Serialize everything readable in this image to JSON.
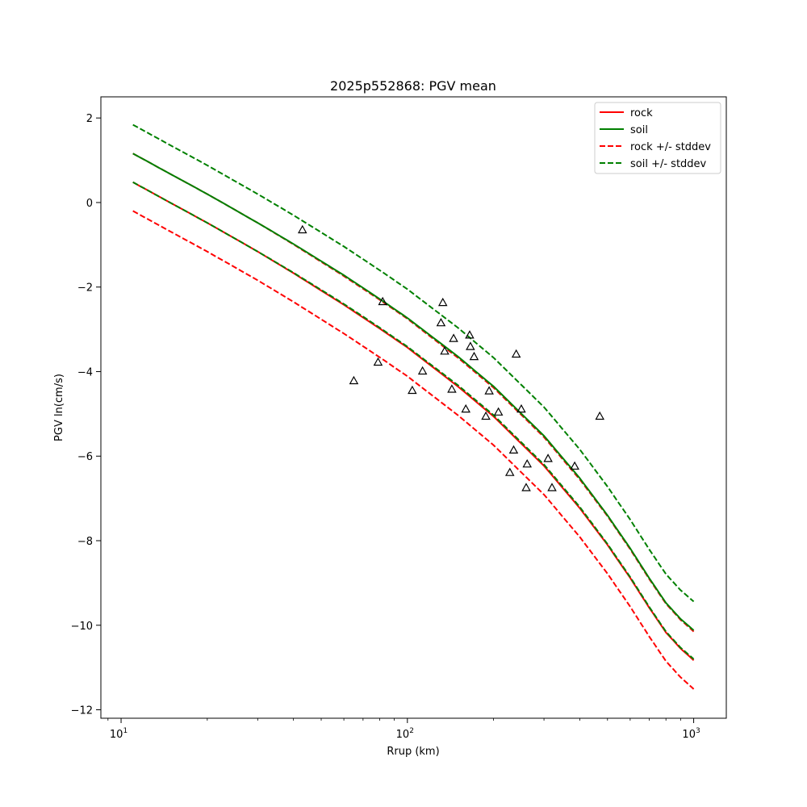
{
  "chart_data": {
    "type": "line",
    "title": "2025p552868: PGV mean",
    "xlabel": "Rrup (km)",
    "ylabel": "PGV ln(cm/s)",
    "x_scale": "log",
    "xlim": [
      8.5,
      1300
    ],
    "ylim": [
      -12.2,
      2.5
    ],
    "x_ticks": [
      {
        "value": 10,
        "base": "10",
        "exp": "1"
      },
      {
        "value": 100,
        "base": "10",
        "exp": "2"
      },
      {
        "value": 1000,
        "base": "10",
        "exp": "3"
      }
    ],
    "y_ticks": [
      {
        "value": 2,
        "label": "2"
      },
      {
        "value": 0,
        "label": "0"
      },
      {
        "value": -2,
        "label": "−2"
      },
      {
        "value": -4,
        "label": "−4"
      },
      {
        "value": -6,
        "label": "−6"
      },
      {
        "value": -8,
        "label": "−8"
      },
      {
        "value": -10,
        "label": "−10"
      },
      {
        "value": -12,
        "label": "−12"
      }
    ],
    "grid": false,
    "legend_position": "top-right",
    "legend": [
      {
        "label": "rock",
        "color": "#ff0000",
        "dash": "solid"
      },
      {
        "label": "soil",
        "color": "#008000",
        "dash": "solid"
      },
      {
        "label": "rock +/- stddev",
        "color": "#ff0000",
        "dash": "dashed"
      },
      {
        "label": "soil +/- stddev",
        "color": "#008000",
        "dash": "dashed"
      }
    ],
    "x": [
      11,
      15,
      20,
      30,
      40,
      60,
      80,
      100,
      150,
      200,
      300,
      400,
      500,
      600,
      700,
      800,
      900,
      1000
    ],
    "series": [
      {
        "key": "rock_mean",
        "color": "#ff0000",
        "dash": "solid",
        "values": [
          0.48,
          -0.02,
          -0.48,
          -1.16,
          -1.67,
          -2.42,
          -2.98,
          -3.43,
          -4.35,
          -5.06,
          -6.23,
          -7.23,
          -8.1,
          -8.88,
          -9.59,
          -10.17,
          -10.55,
          -10.83
        ]
      },
      {
        "key": "rock_plus_stddev",
        "color": "#ff0000",
        "dash": "dashed",
        "values": [
          1.16,
          0.66,
          0.2,
          -0.48,
          -0.99,
          -1.74,
          -2.3,
          -2.75,
          -3.67,
          -4.38,
          -5.55,
          -6.55,
          -7.42,
          -8.2,
          -8.91,
          -9.49,
          -9.87,
          -10.15
        ]
      },
      {
        "key": "rock_minus_stddev",
        "color": "#ff0000",
        "dash": "dashed",
        "values": [
          -0.2,
          -0.7,
          -1.16,
          -1.84,
          -2.35,
          -3.1,
          -3.66,
          -4.11,
          -5.03,
          -5.74,
          -6.91,
          -7.91,
          -8.78,
          -9.56,
          -10.27,
          -10.85,
          -11.23,
          -11.51
        ]
      },
      {
        "key": "soil_mean",
        "color": "#008000",
        "dash": "solid",
        "values": [
          1.16,
          0.66,
          0.2,
          -0.48,
          -0.98,
          -1.72,
          -2.28,
          -2.73,
          -3.64,
          -4.35,
          -5.52,
          -6.52,
          -7.4,
          -8.18,
          -8.89,
          -9.47,
          -9.85,
          -10.12
        ]
      },
      {
        "key": "soil_plus_stddev",
        "color": "#008000",
        "dash": "dashed",
        "values": [
          1.84,
          1.34,
          0.88,
          0.2,
          -0.3,
          -1.04,
          -1.6,
          -2.05,
          -2.96,
          -3.67,
          -4.84,
          -5.84,
          -6.72,
          -7.5,
          -8.21,
          -8.79,
          -9.17,
          -9.44
        ]
      },
      {
        "key": "soil_minus_stddev",
        "color": "#008000",
        "dash": "dashed",
        "values": [
          0.48,
          -0.02,
          -0.48,
          -1.16,
          -1.66,
          -2.4,
          -2.96,
          -3.41,
          -4.32,
          -5.03,
          -6.2,
          -7.2,
          -8.08,
          -8.86,
          -9.57,
          -10.15,
          -10.53,
          -10.8
        ]
      }
    ],
    "observations": {
      "marker": "triangle-open",
      "color": "#000000",
      "points": [
        [
          43,
          -0.65
        ],
        [
          65,
          -4.22
        ],
        [
          79,
          -3.78
        ],
        [
          82,
          -2.35
        ],
        [
          104,
          -4.45
        ],
        [
          113,
          -3.99
        ],
        [
          131,
          -2.85
        ],
        [
          133,
          -2.37
        ],
        [
          135,
          -3.52
        ],
        [
          143,
          -4.42
        ],
        [
          145,
          -3.22
        ],
        [
          160,
          -4.89
        ],
        [
          165,
          -3.14
        ],
        [
          166,
          -3.41
        ],
        [
          171,
          -3.65
        ],
        [
          188,
          -5.06
        ],
        [
          193,
          -4.46
        ],
        [
          208,
          -4.96
        ],
        [
          228,
          -6.39
        ],
        [
          235,
          -5.86
        ],
        [
          240,
          -3.59
        ],
        [
          250,
          -4.89
        ],
        [
          260,
          -6.75
        ],
        [
          262,
          -6.19
        ],
        [
          310,
          -6.06
        ],
        [
          320,
          -6.75
        ],
        [
          384,
          -6.24
        ],
        [
          470,
          -5.06
        ]
      ]
    }
  }
}
